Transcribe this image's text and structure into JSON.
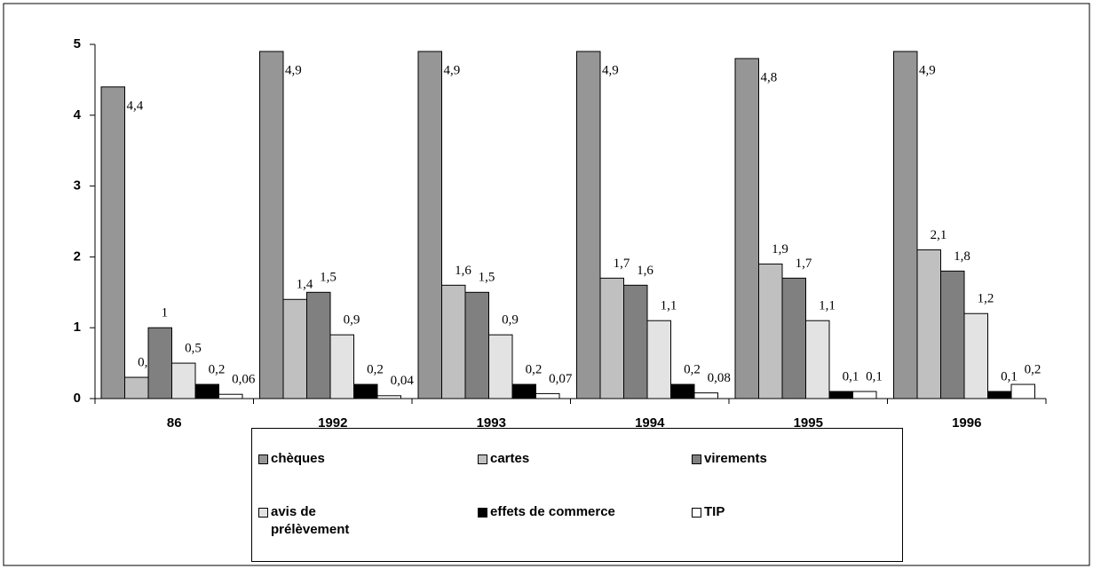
{
  "chart_data": {
    "type": "bar",
    "categories": [
      "86",
      "1992",
      "1993",
      "1994",
      "1995",
      "1996"
    ],
    "ylim": [
      0,
      5
    ],
    "yticks": [
      0,
      1,
      2,
      3,
      4,
      5
    ],
    "series": [
      {
        "name": "chèques",
        "color": "#969696",
        "values": [
          4.4,
          4.9,
          4.9,
          4.9,
          4.8,
          4.9
        ],
        "value_labels": [
          "4,4",
          "4,9",
          "4,9",
          "4,9",
          "4,8",
          "4,9"
        ]
      },
      {
        "name": "cartes",
        "color": "#c0c0c0",
        "values": [
          0.3,
          1.4,
          1.6,
          1.7,
          1.9,
          2.1
        ],
        "value_labels": [
          "0,3",
          "1,4",
          "1,6",
          "1,7",
          "1,9",
          "2,1"
        ]
      },
      {
        "name": "virements",
        "color": "#808080",
        "values": [
          1,
          1.5,
          1.5,
          1.6,
          1.7,
          1.8
        ],
        "value_labels": [
          "1",
          "1,5",
          "1,5",
          "1,6",
          "1,7",
          "1,8"
        ]
      },
      {
        "name": "avis de prélèvement",
        "color": "#e3e3e3",
        "values": [
          0.5,
          0.9,
          0.9,
          1.1,
          1.1,
          1.2
        ],
        "value_labels": [
          "0,5",
          "0,9",
          "0,9",
          "1,1",
          "1,1",
          "1,2"
        ]
      },
      {
        "name": "effets de commerce",
        "color": "#000000",
        "values": [
          0.2,
          0.2,
          0.2,
          0.2,
          0.1,
          0.1
        ],
        "value_labels": [
          "0,2",
          "0,2",
          "0,2",
          "0,2",
          "0,1",
          "0,1"
        ]
      },
      {
        "name": "TIP",
        "color": "#ffffff",
        "values": [
          0.06,
          0.04,
          0.07,
          0.08,
          0.1,
          0.2
        ],
        "value_labels": [
          "0,06",
          "0,04",
          "0,07",
          "0,08",
          "0,1",
          "0,2"
        ]
      }
    ]
  }
}
